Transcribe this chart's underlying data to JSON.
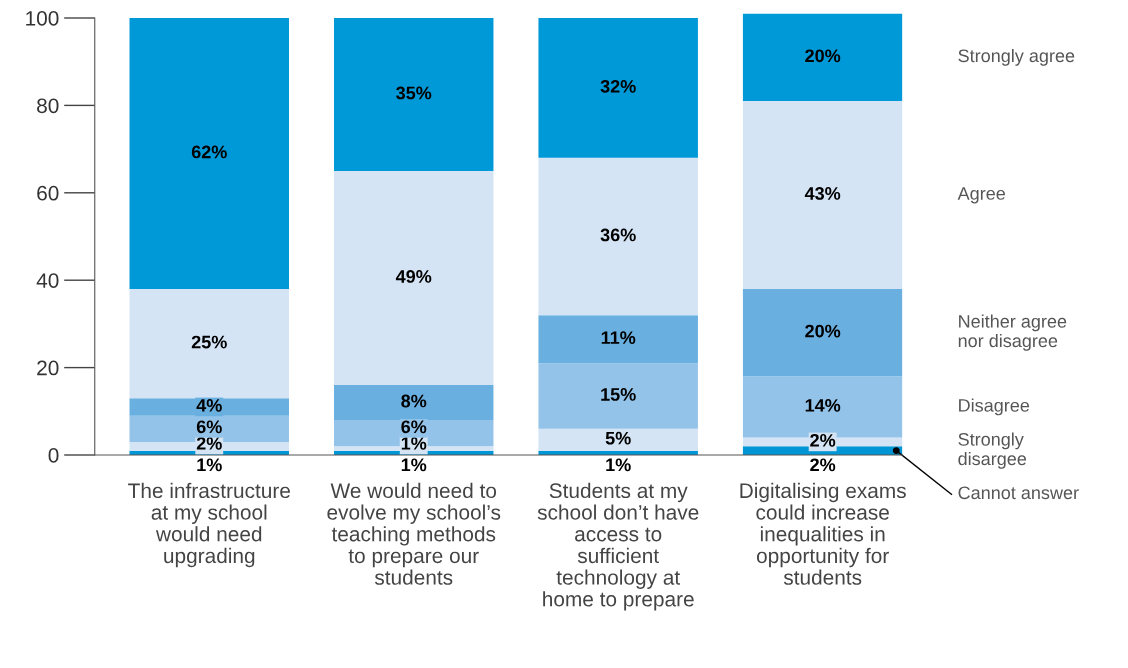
{
  "chart_data": {
    "type": "bar",
    "stacked": true,
    "categories": [
      "The infrastructure at my school would need upgrading",
      "We would need to evolve my school’s teaching methods to prepare our students",
      "Students at my school don’t have access to sufficient technology at home to prepare",
      "Digitalising exams could increase inequalities in opportunity for students"
    ],
    "series": [
      {
        "name": "Cannot answer",
        "color": "#0095d5",
        "values": [
          1,
          1,
          1,
          2
        ],
        "value_labels": [
          "1%",
          "1%",
          "1%",
          "2%"
        ]
      },
      {
        "name": "Strongly disargee",
        "color": "#d4e4f4",
        "values": [
          2,
          1,
          5,
          2
        ],
        "value_labels": [
          "2%",
          "1%",
          "5%",
          "2%"
        ]
      },
      {
        "name": "Disagree",
        "color": "#94c3e9",
        "values": [
          6,
          6,
          15,
          14
        ],
        "value_labels": [
          "6%",
          "6%",
          "15%",
          "14%"
        ]
      },
      {
        "name": "Neither agree nor disagree",
        "color": "#69afe0",
        "values": [
          4,
          8,
          11,
          20
        ],
        "value_labels": [
          "4%",
          "8%",
          "11%",
          "20%"
        ]
      },
      {
        "name": "Agree",
        "color": "#d4e4f4",
        "values": [
          25,
          49,
          36,
          43
        ],
        "value_labels": [
          "25%",
          "49%",
          "36%",
          "43%"
        ]
      },
      {
        "name": "Strongly agree",
        "color": "#0099d8",
        "values": [
          62,
          35,
          32,
          20
        ],
        "value_labels": [
          "62%",
          "35%",
          "32%",
          "20%"
        ]
      }
    ],
    "ylim": [
      0,
      102
    ],
    "yticks": [
      0,
      20,
      40,
      60,
      80,
      100
    ],
    "grid": false,
    "legend": "right"
  }
}
